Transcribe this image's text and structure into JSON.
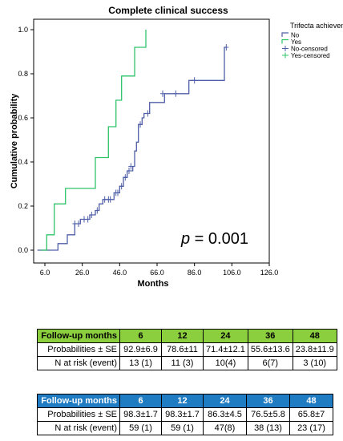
{
  "chart_data": {
    "type": "line",
    "title": "Complete clinical success",
    "xlabel": "Months",
    "ylabel": "Cumulative probability",
    "xlim": [
      0,
      126
    ],
    "ylim": [
      0,
      1.05
    ],
    "xticks": [
      6,
      26,
      46,
      66,
      86,
      106,
      126
    ],
    "xtick_labels": [
      "6.0",
      "26.0",
      "46.0",
      "66.0",
      "86.0",
      "106.0",
      "126.0"
    ],
    "yticks": [
      0,
      0.2,
      0.4,
      0.6,
      0.8,
      1.0
    ],
    "ytick_labels": [
      "0.0",
      "0.2",
      "0.4",
      "0.6",
      "0.8",
      "1.0"
    ],
    "annotation": {
      "p_label": "p",
      "p_text": " = 0.001"
    },
    "legend": {
      "title": "Trifecta achievement",
      "position": "top-right",
      "entries": [
        "No",
        "Yes",
        "No-censored",
        "Yes-censored"
      ]
    },
    "series": [
      {
        "name": "No",
        "color": "#4f5fa8",
        "steps": [
          [
            2,
            0
          ],
          [
            13,
            0
          ],
          [
            13,
            0.03
          ],
          [
            18,
            0.03
          ],
          [
            18,
            0.07
          ],
          [
            22,
            0.07
          ],
          [
            22,
            0.12
          ],
          [
            25,
            0.12
          ],
          [
            25,
            0.14
          ],
          [
            30,
            0.14
          ],
          [
            30,
            0.16
          ],
          [
            33,
            0.16
          ],
          [
            33,
            0.18
          ],
          [
            35,
            0.18
          ],
          [
            35,
            0.21
          ],
          [
            37,
            0.21
          ],
          [
            37,
            0.23
          ],
          [
            43,
            0.23
          ],
          [
            43,
            0.26
          ],
          [
            46,
            0.26
          ],
          [
            46,
            0.29
          ],
          [
            48,
            0.29
          ],
          [
            48,
            0.33
          ],
          [
            50,
            0.33
          ],
          [
            50,
            0.36
          ],
          [
            53,
            0.36
          ],
          [
            53,
            0.38
          ],
          [
            54,
            0.38
          ],
          [
            54,
            0.45
          ],
          [
            55,
            0.45
          ],
          [
            55,
            0.49
          ],
          [
            56,
            0.49
          ],
          [
            56,
            0.57
          ],
          [
            58,
            0.57
          ],
          [
            58,
            0.6
          ],
          [
            59,
            0.6
          ],
          [
            59,
            0.62
          ],
          [
            62,
            0.62
          ],
          [
            62,
            0.67
          ],
          [
            70,
            0.67
          ],
          [
            70,
            0.71
          ],
          [
            83,
            0.71
          ],
          [
            83,
            0.77
          ],
          [
            102,
            0.77
          ],
          [
            102,
            0.92
          ],
          [
            103,
            0.92
          ]
        ],
        "censored": [
          [
            22,
            0.12
          ],
          [
            24,
            0.12
          ],
          [
            27,
            0.14
          ],
          [
            29,
            0.14
          ],
          [
            31,
            0.16
          ],
          [
            34,
            0.18
          ],
          [
            38,
            0.23
          ],
          [
            40,
            0.23
          ],
          [
            41,
            0.23
          ],
          [
            44,
            0.26
          ],
          [
            45,
            0.26
          ],
          [
            47,
            0.29
          ],
          [
            49,
            0.33
          ],
          [
            51,
            0.36
          ],
          [
            52,
            0.38
          ],
          [
            57,
            0.57
          ],
          [
            61,
            0.62
          ],
          [
            69,
            0.71
          ],
          [
            76,
            0.71
          ],
          [
            86,
            0.77
          ],
          [
            103,
            0.92
          ]
        ]
      },
      {
        "name": "Yes",
        "color": "#2fc46a",
        "steps": [
          [
            4,
            0
          ],
          [
            7,
            0
          ],
          [
            7,
            0.07
          ],
          [
            11,
            0.07
          ],
          [
            11,
            0.21
          ],
          [
            17,
            0.21
          ],
          [
            17,
            0.28
          ],
          [
            33,
            0.28
          ],
          [
            33,
            0.42
          ],
          [
            40,
            0.42
          ],
          [
            40,
            0.56
          ],
          [
            44,
            0.56
          ],
          [
            44,
            0.68
          ],
          [
            47,
            0.68
          ],
          [
            47,
            0.79
          ],
          [
            54,
            0.79
          ],
          [
            54,
            0.92
          ],
          [
            60,
            0.92
          ],
          [
            60,
            1.0
          ]
        ],
        "censored": []
      }
    ]
  },
  "tables": [
    {
      "header_label": "Follow-up months",
      "months": [
        "6",
        "12",
        "24",
        "36",
        "48"
      ],
      "probabilities_label": "Probabilities ± SE",
      "probabilities": [
        "92.9±6.9",
        "78.6±11",
        "71.4±12.1",
        "55.6±13.6",
        "23.8±11.9"
      ],
      "at_risk_label": "N at risk (event)",
      "at_risk": [
        "13 (1)",
        "11 (3)",
        "10(4)",
        "6(7)",
        "3 (10)"
      ],
      "header_color": "#8bcf3f"
    },
    {
      "header_label": "Follow-up months",
      "months": [
        "6",
        "12",
        "24",
        "36",
        "48"
      ],
      "probabilities_label": "Probabilities ± SE",
      "probabilities": [
        "98.3±1.7",
        "98.3±1.7",
        "86.3±4.5",
        "76.5±5.8",
        "65.8±7"
      ],
      "at_risk_label": "N at risk (event)",
      "at_risk": [
        "59 (1)",
        "59 (1)",
        "47(8)",
        "38 (13)",
        "23 (17)"
      ],
      "header_color": "#1f7bc2"
    }
  ]
}
